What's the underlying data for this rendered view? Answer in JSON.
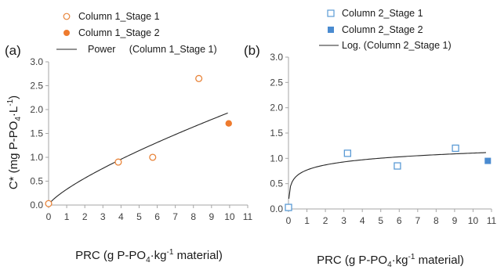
{
  "colors": {
    "stage1_marker_a": "#e8843a",
    "stage2_marker_a": "#ee7b2e",
    "stage1_marker_b": "#5b9bd5",
    "stage2_marker_b": "#4a8bd0",
    "trend_line": "#262626",
    "axis": "#a6a6a6",
    "text": "#1a1a1a"
  },
  "chart_data": [
    {
      "panel_label": "(a)",
      "type": "scatter",
      "xlabel": {
        "pre": "PRC (g P-PO",
        "sub": "4",
        "mid": "·kg",
        "sup": "-1",
        "post": " material)"
      },
      "ylabel": {
        "pre": "C* (mg  P-PO",
        "sub": "4",
        "mid": "·L",
        "sup": "-1",
        "post": ")"
      },
      "xlim": [
        0,
        11
      ],
      "ylim": [
        0,
        3
      ],
      "xticks": [
        "0",
        "1",
        "2",
        "3",
        "4",
        "5",
        "6",
        "7",
        "8",
        "9",
        "10",
        "11"
      ],
      "yticks": [
        "0.0",
        "0.5",
        "1.0",
        "1.5",
        "2.0",
        "2.5",
        "3.0"
      ],
      "legend_position": "top",
      "legend": [
        {
          "label": "Column 1_Stage 1",
          "kind": "marker-open-circle"
        },
        {
          "label": "Column 1_Stage 2",
          "kind": "marker-filled-circle"
        },
        {
          "label": "Power     (Column 1_Stage 1)",
          "kind": "line"
        }
      ],
      "series": [
        {
          "name": "Column 1_Stage 1",
          "marker": "open-circle",
          "x": [
            0,
            3.85,
            5.75,
            8.3
          ],
          "y": [
            0.03,
            0.9,
            1.0,
            2.65
          ]
        },
        {
          "name": "Column 1_Stage 2",
          "marker": "filled-circle",
          "x": [
            9.95
          ],
          "y": [
            1.71
          ]
        }
      ],
      "trendline": {
        "name": "Power",
        "of": "Column 1_Stage 1",
        "model": "power",
        "coef": 0.33,
        "exponent": 0.77,
        "x_range": [
          0,
          9.9
        ]
      }
    },
    {
      "panel_label": "(b)",
      "type": "scatter",
      "xlabel": {
        "pre": "PRC (g P-PO",
        "sub": "4",
        "mid": "·kg",
        "sup": "-1",
        "post": " material)"
      },
      "ylabel": null,
      "xlim": [
        0,
        11
      ],
      "ylim": [
        0,
        3
      ],
      "xticks": [
        "0",
        "1",
        "2",
        "3",
        "4",
        "5",
        "6",
        "7",
        "8",
        "9",
        "10",
        "11"
      ],
      "yticks": [
        "0.0",
        "0.5",
        "1.0",
        "1.5",
        "2.0",
        "2.5",
        "3.0"
      ],
      "legend_position": "top",
      "legend": [
        {
          "label": "Column 2_Stage 1",
          "kind": "marker-open-square"
        },
        {
          "label": "Column 2_Stage 2",
          "kind": "marker-filled-square"
        },
        {
          "label": "Log. (Column 2_Stage 1)",
          "kind": "line"
        }
      ],
      "series": [
        {
          "name": "Column 2_Stage 1",
          "marker": "open-square",
          "x": [
            0,
            3.2,
            5.9,
            9.05
          ],
          "y": [
            0.03,
            1.1,
            0.85,
            1.2
          ]
        },
        {
          "name": "Column 2_Stage 2",
          "marker": "filled-square",
          "x": [
            10.8
          ],
          "y": [
            0.95
          ]
        }
      ],
      "trendline": {
        "name": "Log.",
        "of": "Column 2_Stage 1",
        "model": "log",
        "a": 0.145,
        "b": 0.77,
        "x_range": [
          0.02,
          10.7
        ]
      }
    }
  ]
}
